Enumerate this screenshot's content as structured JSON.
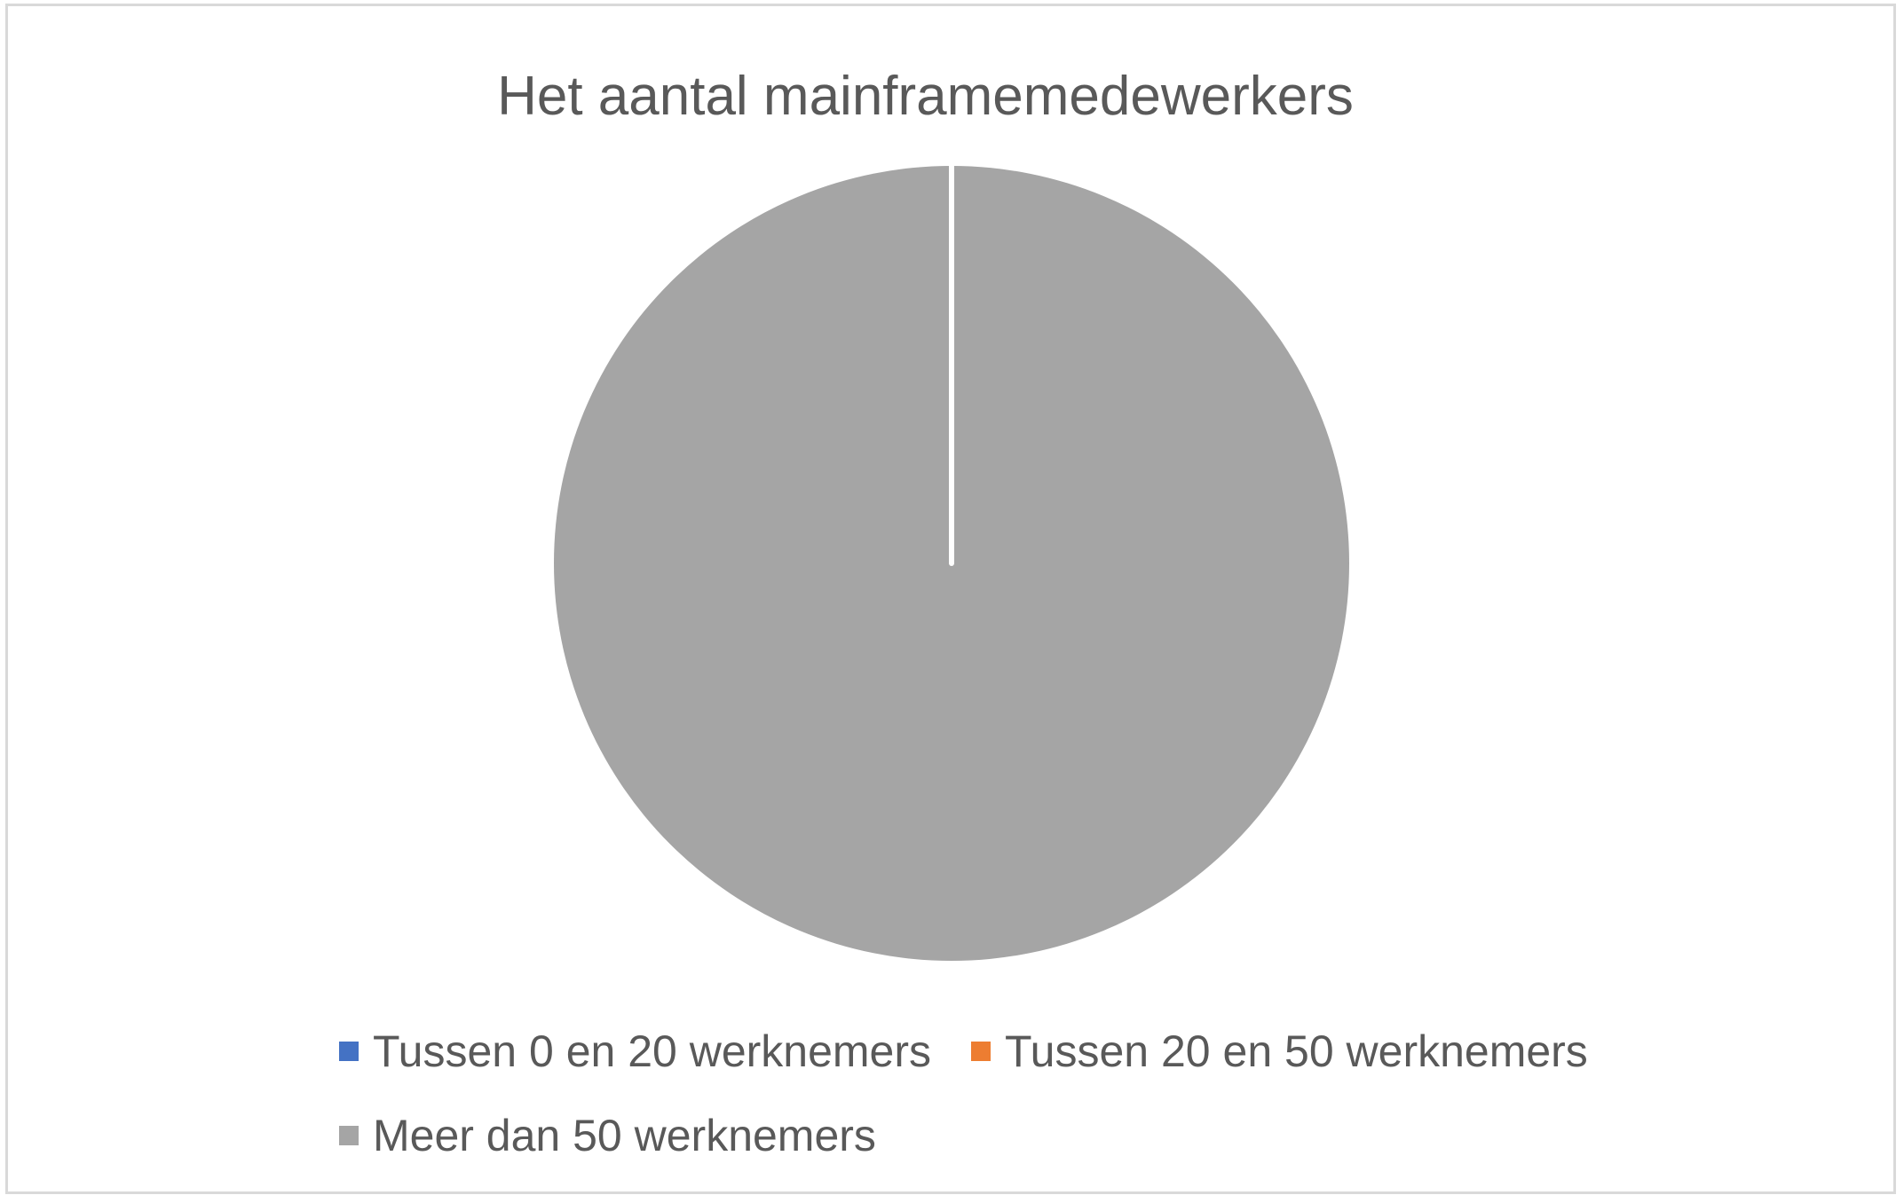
{
  "chart_data": {
    "type": "pie",
    "title": "Het aantal mainframemedewerkers",
    "categories": [
      "Tussen 0 en 20 werknemers",
      "Tussen 20 en 50 werknemers",
      "Meer dan 50 werknemers"
    ],
    "values": [
      0,
      0,
      100
    ],
    "unit": "%",
    "colors": [
      "#4472c4",
      "#ed7d31",
      "#a5a5a5"
    ],
    "start_angle_deg": 0,
    "legend_position": "bottom"
  }
}
